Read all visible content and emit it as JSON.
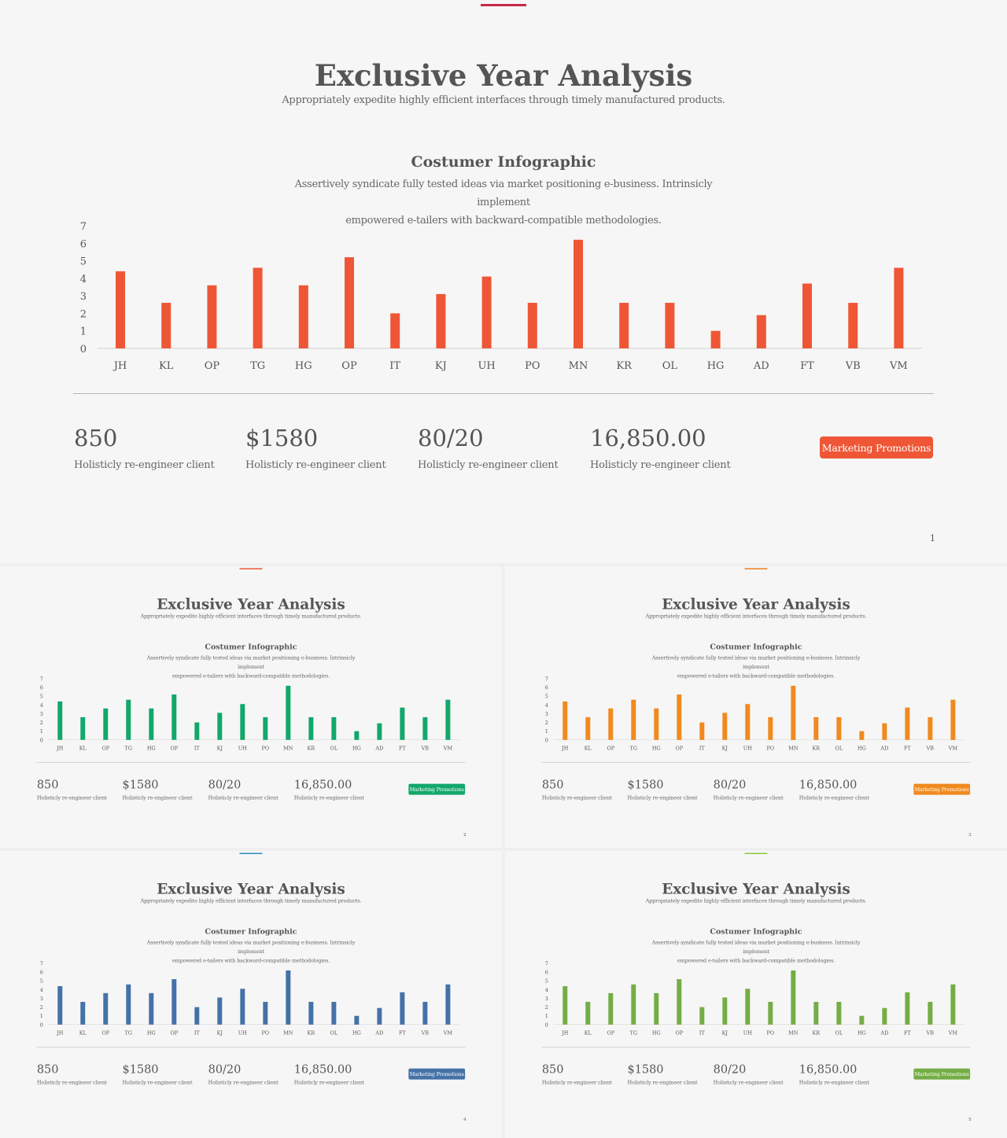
{
  "slides": [
    {
      "accent": "#c8284d",
      "bar_color": "#ef5636",
      "button_color": "#ef5636",
      "page": "1"
    },
    {
      "accent": "#ef5636",
      "bar_color": "#12a86a",
      "button_color": "#12a86a",
      "page": "2"
    },
    {
      "accent": "#ec7b20",
      "bar_color": "#f08a1f",
      "button_color": "#f08a1f",
      "page": "3"
    },
    {
      "accent": "#2b8eb8",
      "bar_color": "#4472a8",
      "button_color": "#4472a8",
      "page": "4"
    },
    {
      "accent": "#8cc63e",
      "bar_color": "#74ad45",
      "button_color": "#74ad45",
      "page": "5"
    }
  ],
  "header": {
    "title": "Exclusive Year Analysis",
    "subtitle": "Appropriately expedite highly efficient interfaces through timely manufactured products."
  },
  "section": {
    "title": "Costumer Infographic",
    "description_line1": "Assertively syndicate fully tested ideas via market positioning e-business. Intrinsicly implement",
    "description_line2": "empowered e-tailers with backward-compatible methodologies."
  },
  "stats": [
    {
      "value": "850",
      "label": "Holisticly re-engineer client"
    },
    {
      "value": "$1580",
      "label": "Holisticly re-engineer client"
    },
    {
      "value": "80/20",
      "label": "Holisticly re-engineer client"
    },
    {
      "value": "16,850.00",
      "label": "Holisticly re-engineer client"
    }
  ],
  "button": {
    "label": "Marketing Promotions"
  },
  "chart_data": {
    "type": "bar",
    "categories": [
      "JH",
      "KL",
      "OP",
      "TG",
      "HG",
      "OP",
      "IT",
      "KJ",
      "UH",
      "PO",
      "MN",
      "KR",
      "OL",
      "HG",
      "AD",
      "FT",
      "VB",
      "VM"
    ],
    "values": [
      4.4,
      2.6,
      3.6,
      4.6,
      3.6,
      5.2,
      2.0,
      3.1,
      4.1,
      2.6,
      6.2,
      2.6,
      2.6,
      1.0,
      1.9,
      3.7,
      2.6,
      4.6
    ],
    "yticks": [
      "0",
      "1",
      "2",
      "3",
      "4",
      "5",
      "6",
      "7"
    ],
    "ylim": [
      0,
      7
    ],
    "grid": false,
    "legend": "none"
  }
}
